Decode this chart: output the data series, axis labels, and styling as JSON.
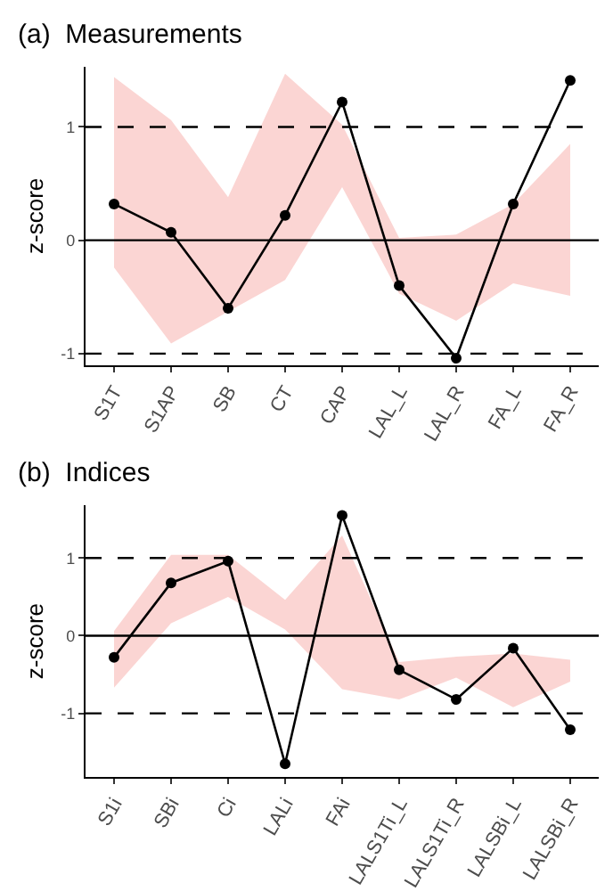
{
  "chart_data": [
    {
      "type": "line",
      "title": "(a)  Measurements",
      "ylabel": "z-score",
      "categories": [
        "S1T",
        "S1AP",
        "SB",
        "CT",
        "CAP",
        "LAL_L",
        "LAL_R",
        "FA_L",
        "FA_R"
      ],
      "series": [
        {
          "color": "#000000",
          "values": [
            0.32,
            0.07,
            -0.6,
            0.22,
            1.22,
            -0.4,
            -1.04,
            0.32,
            1.41
          ],
          "lower": [
            -0.24,
            -0.91,
            -0.63,
            -0.35,
            0.47,
            -0.47,
            -0.71,
            -0.38,
            -0.49
          ],
          "upper": [
            1.44,
            1.06,
            0.38,
            1.47,
            1.02,
            0.02,
            0.05,
            0.32,
            0.85
          ]
        }
      ],
      "ylim": [
        -1.1,
        1.53
      ],
      "yticks": [
        -1,
        0,
        1
      ],
      "marker": "circle",
      "line_style": "solid",
      "ref_lines": [
        {
          "axis": "y",
          "value": 0,
          "line_style": "solid",
          "color": "#000000"
        },
        {
          "axis": "y",
          "value": 1,
          "line_style": "dashed",
          "color": "#000000"
        },
        {
          "axis": "y",
          "value": -1,
          "line_style": "dashed",
          "color": "#000000"
        }
      ]
    },
    {
      "type": "line",
      "title": "(b)  Indices",
      "ylabel": "z-score",
      "categories": [
        "S1i",
        "SBi",
        "Ci",
        "LALi",
        "FAi",
        "LALS1Ti_L",
        "LALS1Ti_R",
        "LALSBi_L",
        "LALSBi_R"
      ],
      "series": [
        {
          "color": "#000000",
          "values": [
            -0.28,
            0.68,
            0.96,
            -1.65,
            1.55,
            -0.44,
            -0.82,
            -0.16,
            -1.21
          ],
          "lower": [
            -0.67,
            0.16,
            0.5,
            0.08,
            -0.69,
            -0.82,
            -0.54,
            -0.92,
            -0.59
          ],
          "upper": [
            0.06,
            1.04,
            1.04,
            0.46,
            1.29,
            -0.34,
            -0.27,
            -0.23,
            -0.31
          ]
        }
      ],
      "ylim": [
        -1.82,
        1.68
      ],
      "yticks": [
        -1,
        0,
        1
      ],
      "marker": "circle",
      "line_style": "solid",
      "ref_lines": [
        {
          "axis": "y",
          "value": 0,
          "line_style": "solid",
          "color": "#000000"
        },
        {
          "axis": "y",
          "value": 1,
          "line_style": "dashed",
          "color": "#000000"
        },
        {
          "axis": "y",
          "value": -1,
          "line_style": "dashed",
          "color": "#000000"
        }
      ]
    }
  ]
}
